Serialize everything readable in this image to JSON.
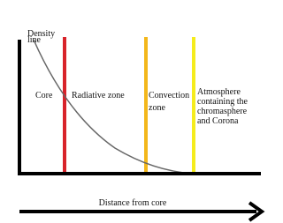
{
  "zones": {
    "density_line": [
      "Density",
      "line"
    ],
    "core": [
      "Core"
    ],
    "radiative": [
      "Radiative zone"
    ],
    "convection": [
      "Convection",
      "zone"
    ],
    "atmosphere": [
      "Atmosphere",
      "containing the",
      "chromasphere",
      "and Corona"
    ]
  },
  "axis_label": "Distance from core"
}
